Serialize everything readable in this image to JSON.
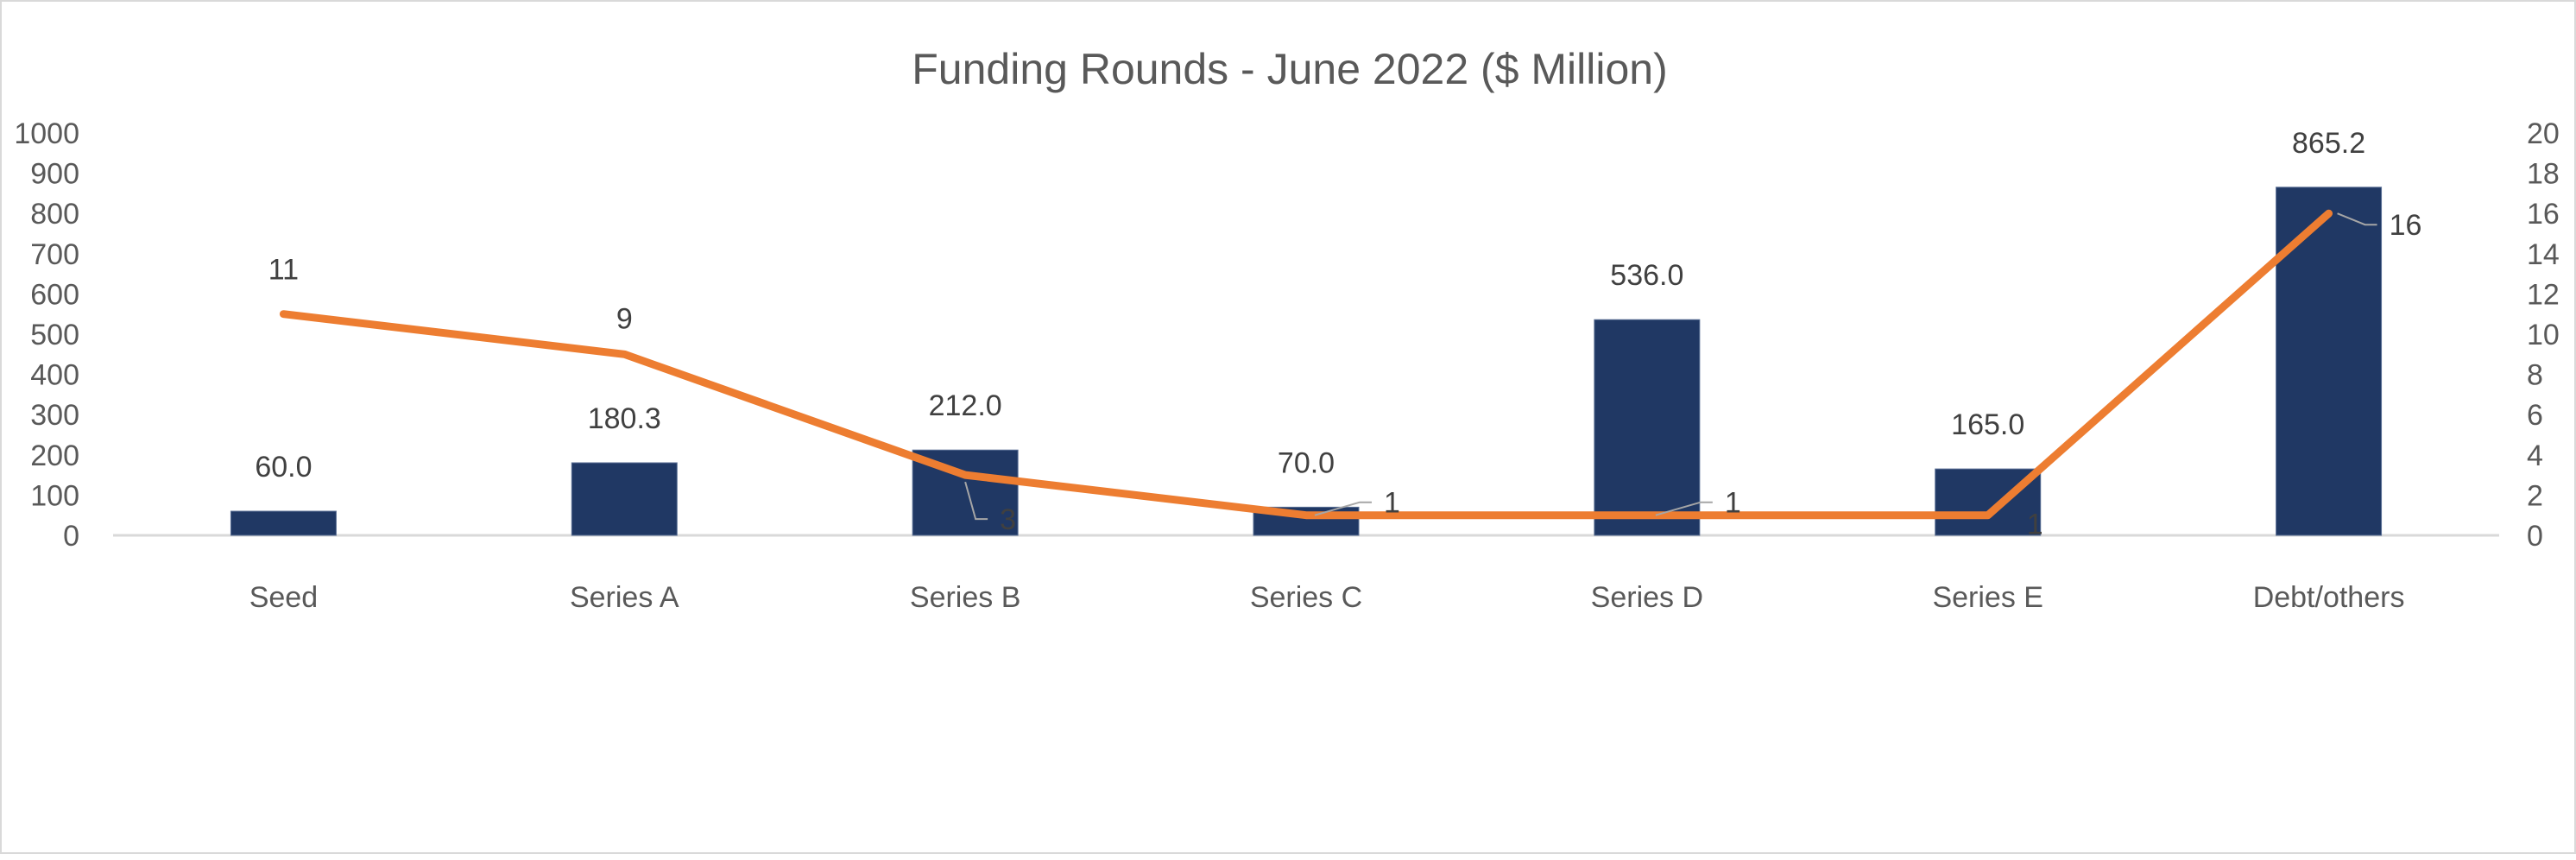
{
  "chart_data": {
    "type": "bar+line",
    "title": "Funding Rounds - June 2022 ($ Million)",
    "categories": [
      "Seed",
      "Series A",
      "Series B",
      "Series C",
      "Series D",
      "Series E",
      "Debt/others"
    ],
    "series": [
      {
        "type": "bar",
        "axis": "left",
        "values": [
          60.0,
          180.3,
          212.0,
          70.0,
          536.0,
          165.0,
          865.2
        ],
        "labels": [
          "60.0",
          "180.3",
          "212.0",
          "70.0",
          "536.0",
          "165.0",
          "865.2"
        ],
        "color": "#203864"
      },
      {
        "type": "line",
        "axis": "right",
        "values": [
          11,
          9,
          3,
          1,
          1,
          1,
          16
        ],
        "labels": [
          "11",
          "9",
          "3",
          "1",
          "1",
          "1",
          "16"
        ],
        "color": "#ed7d31"
      }
    ],
    "y_left": {
      "min": 0,
      "max": 1000,
      "ticks": [
        "0",
        "100",
        "200",
        "300",
        "400",
        "500",
        "600",
        "700",
        "800",
        "900",
        "1000"
      ]
    },
    "y_right": {
      "min": 0,
      "max": 20,
      "ticks": [
        "0",
        "2",
        "4",
        "6",
        "8",
        "10",
        "12",
        "14",
        "16",
        "18",
        "20"
      ]
    },
    "grid": false,
    "legend": "none"
  }
}
